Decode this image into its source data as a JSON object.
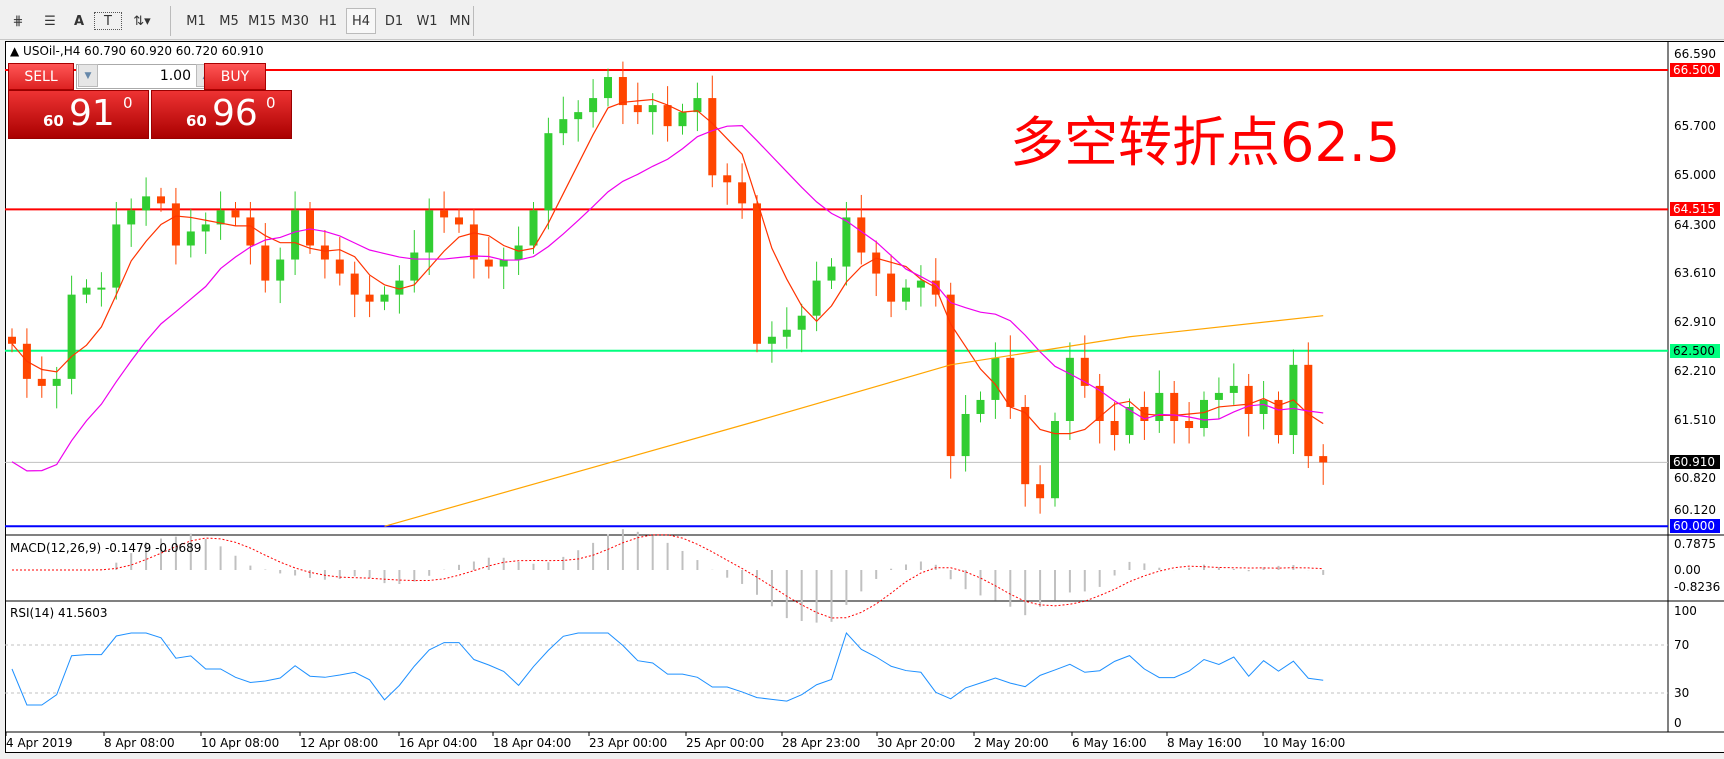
{
  "toolbar": {
    "tools": [
      {
        "icon": "indicators-icon"
      },
      {
        "icon": "fibonacci-icon"
      },
      {
        "label": "A",
        "icon": "text-icon"
      },
      {
        "label": "T",
        "icon": "text-label-icon"
      },
      {
        "icon": "arrows-icon"
      }
    ],
    "timeframes": [
      "M1",
      "M5",
      "M15",
      "M30",
      "H1",
      "H4",
      "D1",
      "W1",
      "MN"
    ],
    "active_timeframe": "H4"
  },
  "chart": {
    "symbol_info": "USOil-,H4  60.790 60.920 60.720 60.910",
    "one_click": {
      "sell_label": "SELL",
      "buy_label": "BUY",
      "lot": "1.00",
      "sell_big": "60",
      "sell_main": "91",
      "sell_pip": "0",
      "buy_big": "60",
      "buy_main": "96",
      "buy_pip": "0"
    },
    "annotation": "多空转折点62.5",
    "price_axis": [
      "66.590",
      "65.700",
      "65.000",
      "64.300",
      "63.610",
      "62.910",
      "62.210",
      "61.510",
      "60.820",
      "60.120"
    ],
    "levels": [
      {
        "price": 66.5,
        "label": "66.500",
        "color": "#ff0000"
      },
      {
        "price": 64.515,
        "label": "64.515",
        "color": "#ff0000"
      },
      {
        "price": 62.5,
        "label": "62.500",
        "color": "#00ff7f"
      },
      {
        "price": 60.91,
        "label": "60.910",
        "color": "#000000",
        "line": "#c0c0c0"
      },
      {
        "price": 60.0,
        "label": "60.000",
        "color": "#0000ff"
      }
    ],
    "colors": {
      "bull": "#32cd32",
      "bear": "#ff4500",
      "ma_fast": "#ff3300",
      "ma_mid": "#ee00ee",
      "ma_slow": "#ffa500",
      "macd": "#c0c0c0",
      "signal": "#ff0000",
      "rsi": "#1e90ff"
    },
    "closes": [
      62.6,
      62.1,
      62.0,
      62.1,
      63.3,
      63.4,
      63.4,
      64.3,
      64.5,
      64.7,
      64.6,
      64.0,
      64.2,
      64.3,
      64.5,
      64.4,
      64.0,
      63.5,
      63.8,
      64.5,
      64.0,
      63.8,
      63.6,
      63.3,
      63.2,
      63.3,
      63.5,
      63.9,
      64.5,
      64.4,
      64.3,
      63.8,
      63.7,
      63.8,
      64.0,
      64.5,
      65.6,
      65.8,
      65.9,
      66.1,
      66.4,
      66.0,
      65.9,
      66.0,
      65.7,
      65.9,
      66.1,
      65.0,
      64.9,
      64.6,
      62.6,
      62.7,
      62.8,
      63.0,
      63.5,
      63.7,
      64.4,
      63.9,
      63.6,
      63.2,
      63.4,
      63.5,
      63.3,
      61.0,
      61.6,
      61.8,
      62.4,
      61.7,
      60.6,
      60.4,
      61.5,
      62.4,
      62.0,
      61.5,
      61.3,
      61.7,
      61.5,
      61.9,
      61.5,
      61.4,
      61.8,
      61.9,
      62.0,
      61.6,
      61.8,
      61.3,
      62.3,
      61.0,
      60.91
    ],
    "ma_slow": [
      [
        25,
        60.0
      ],
      [
        50,
        61.5
      ],
      [
        63,
        62.3
      ],
      [
        75,
        62.7
      ],
      [
        88,
        63.0
      ]
    ]
  },
  "macd": {
    "label": "MACD(12,26,9) -0.1479 -0.0689",
    "axis": [
      "0.7875",
      "0.00",
      "-0.8236"
    ]
  },
  "rsi": {
    "label": "RSI(14) 41.5603",
    "axis": [
      "100",
      "70",
      "30",
      "0"
    ]
  },
  "time_axis": [
    "4 Apr 2019",
    "8 Apr 08:00",
    "10 Apr 08:00",
    "12 Apr 08:00",
    "16 Apr 04:00",
    "18 Apr 04:00",
    "23 Apr 00:00",
    "25 Apr 00:00",
    "28 Apr 23:00",
    "30 Apr 20:00",
    "2 May 20:00",
    "6 May 16:00",
    "8 May 16:00",
    "10 May 16:00"
  ]
}
